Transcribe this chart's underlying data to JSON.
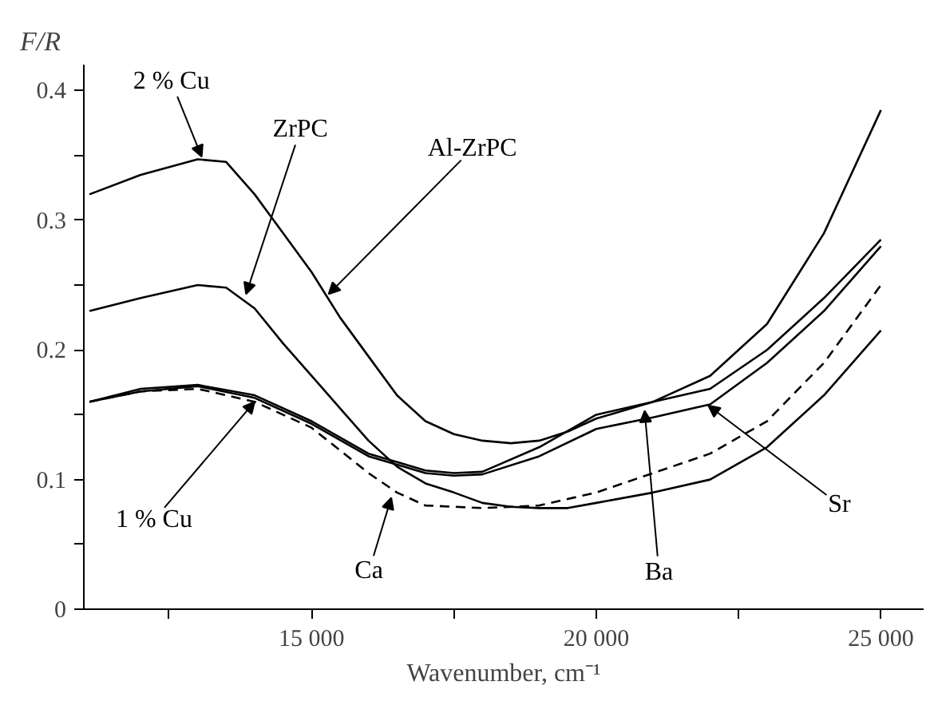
{
  "chart_data": {
    "type": "line",
    "xlabel": "Wavenumber, cm⁻¹",
    "ylabel": "F/R",
    "xlim": [
      11000,
      25750
    ],
    "ylim": [
      0,
      0.42
    ],
    "xticks": [
      {
        "value": 12500,
        "label": null
      },
      {
        "value": 15000,
        "label": "15 000"
      },
      {
        "value": 17500,
        "label": null
      },
      {
        "value": 20000,
        "label": "20 000"
      },
      {
        "value": 22500,
        "label": null
      },
      {
        "value": 25000,
        "label": "25 000"
      }
    ],
    "yticks": [
      0,
      {
        "value": 0.05,
        "label": null
      },
      0.1,
      {
        "value": 0.15,
        "label": null
      },
      0.2,
      {
        "value": 0.25,
        "label": null
      },
      0.3,
      {
        "value": 0.35,
        "label": null
      },
      0.4
    ],
    "grid": false,
    "marker": "none",
    "series": [
      {
        "color": "#000000",
        "line_style": "solid",
        "x": [
          11100,
          12000,
          13000,
          13500,
          14000,
          14500,
          15000,
          15500,
          16000,
          16500,
          17000,
          17500,
          18000,
          18500,
          19000,
          19500,
          20000,
          21000,
          22000,
          23000,
          24000,
          25000
        ],
        "values": [
          0.32,
          0.335,
          0.347,
          0.345,
          0.32,
          0.29,
          0.26,
          0.225,
          0.195,
          0.165,
          0.145,
          0.135,
          0.13,
          0.128,
          0.13,
          0.137,
          0.147,
          0.16,
          0.18,
          0.22,
          0.29,
          0.385
        ]
      },
      {
        "color": "#000000",
        "line_style": "solid",
        "x": [
          11100,
          12000,
          13000,
          13500,
          14000,
          14500,
          15000,
          15500,
          16000,
          16500,
          17000,
          17500,
          18000,
          18500,
          19000,
          19500,
          20000,
          21000,
          22000,
          23000,
          24000,
          25000
        ],
        "values": [
          0.23,
          0.24,
          0.25,
          0.248,
          0.232,
          0.205,
          0.18,
          0.155,
          0.13,
          0.11,
          0.097,
          0.09,
          0.082,
          0.079,
          0.078,
          0.078,
          0.082,
          0.09,
          0.1,
          0.125,
          0.165,
          0.215
        ]
      },
      {
        "color": "#000000",
        "line_style": "solid",
        "x": [
          11100,
          12000,
          13000,
          14000,
          15000,
          16000,
          17000,
          17500,
          18000,
          19000,
          20000,
          21000,
          22000,
          23000,
          24000,
          25000
        ],
        "values": [
          0.16,
          0.17,
          0.173,
          0.165,
          0.145,
          0.12,
          0.107,
          0.105,
          0.106,
          0.125,
          0.15,
          0.16,
          0.17,
          0.2,
          0.24,
          0.285
        ]
      },
      {
        "color": "#000000",
        "line_style": "solid",
        "x": [
          11100,
          12000,
          13000,
          14000,
          15000,
          16000,
          17000,
          17500,
          18000,
          19000,
          20000,
          21000,
          22000,
          23000,
          24000,
          25000
        ],
        "values": [
          0.16,
          0.168,
          0.172,
          0.163,
          0.143,
          0.118,
          0.105,
          0.103,
          0.104,
          0.118,
          0.139,
          0.148,
          0.158,
          0.19,
          0.23,
          0.28
        ]
      },
      {
        "color": "#000000",
        "line_style": "dashed",
        "x": [
          11100,
          12000,
          13000,
          14000,
          15000,
          16000,
          16500,
          17000,
          18000,
          19000,
          20000,
          21000,
          22000,
          23000,
          24000,
          25000
        ],
        "values": [
          0.16,
          0.168,
          0.17,
          0.16,
          0.14,
          0.105,
          0.09,
          0.08,
          0.078,
          0.08,
          0.09,
          0.105,
          0.12,
          0.145,
          0.19,
          0.25
        ]
      }
    ],
    "annotations": [
      {
        "text": "2 % Cu",
        "x": 13070,
        "y": 0.349
      },
      {
        "text": "ZrPC",
        "x": 13850,
        "y": 0.243
      },
      {
        "text": "Al-ZrPC",
        "x": 15300,
        "y": 0.243
      },
      {
        "text": "1 % Cu",
        "x": 14000,
        "y": 0.16
      },
      {
        "text": "Ca",
        "x": 16400,
        "y": 0.086
      },
      {
        "text": "Ba",
        "x": 20850,
        "y": 0.153
      },
      {
        "text": "Sr",
        "x": 21970,
        "y": 0.157
      }
    ]
  }
}
